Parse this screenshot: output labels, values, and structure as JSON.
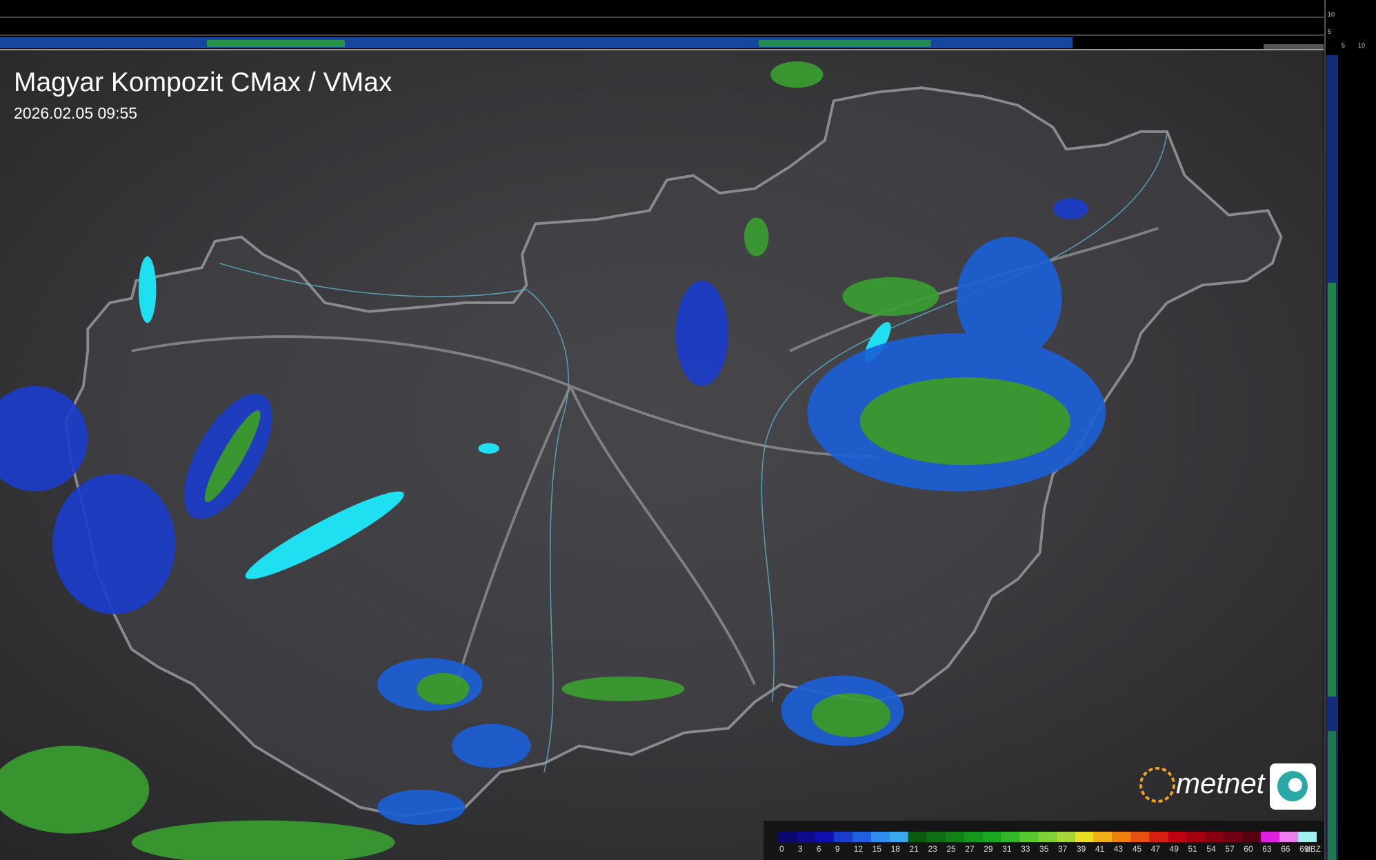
{
  "header": {
    "title": "Magyar Kompozit CMax / VMax",
    "timestamp": "2026.02.05 09:55"
  },
  "legend": {
    "labels": [
      0,
      3,
      6,
      9,
      12,
      15,
      18,
      21,
      23,
      25,
      27,
      29,
      31,
      33,
      35,
      37,
      39,
      41,
      43,
      45,
      47,
      49,
      51,
      54,
      57,
      60,
      63,
      66,
      69
    ],
    "unit": "dBZ",
    "colors": [
      "#0a0a6e",
      "#0b0b8c",
      "#1010b0",
      "#1a3ccc",
      "#2060e0",
      "#2e8ef0",
      "#3aa8f0",
      "#0a5a10",
      "#0e6e14",
      "#128218",
      "#16961c",
      "#1aa822",
      "#30b828",
      "#58c830",
      "#80d038",
      "#a8d838",
      "#e8e020",
      "#f0b018",
      "#f08010",
      "#e85010",
      "#d82010",
      "#c00010",
      "#a00010",
      "#880010",
      "#700010",
      "#580010",
      "#e020e0",
      "#f080f0",
      "#a0f0f0"
    ]
  },
  "logo": {
    "text": "metnet"
  },
  "profile_scales": {
    "top": [
      10,
      5
    ],
    "right": [
      5,
      10
    ]
  }
}
